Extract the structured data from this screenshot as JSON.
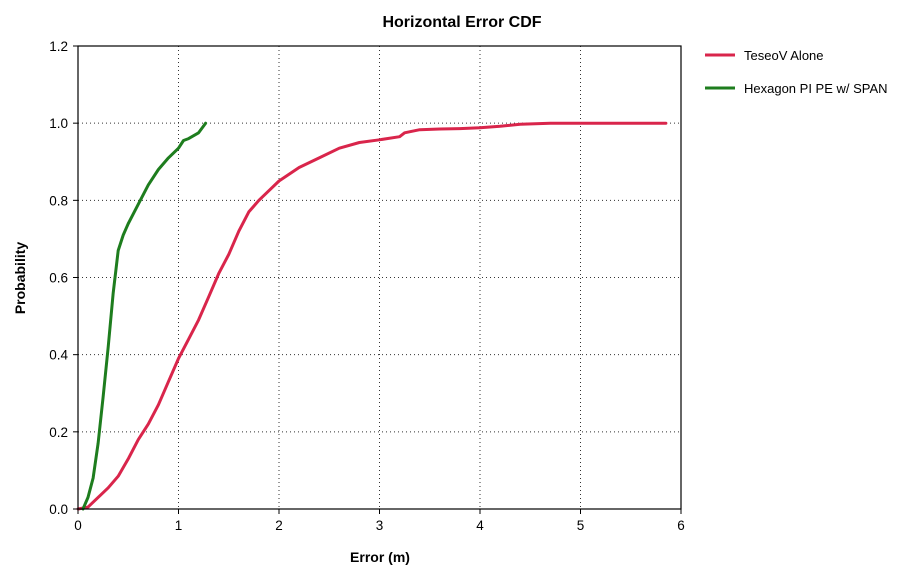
{
  "chart_data": {
    "type": "line",
    "title": "Horizontal Error CDF",
    "xlabel": "Error (m)",
    "ylabel": "Probability",
    "xlim": [
      0,
      6
    ],
    "ylim": [
      0,
      1.2
    ],
    "x_ticks": [
      "0",
      "1",
      "2",
      "3",
      "4",
      "5",
      "6"
    ],
    "y_ticks": [
      "0.0",
      "0.2",
      "0.4",
      "0.6",
      "0.8",
      "1.0",
      "1.2"
    ],
    "grid": true,
    "legend_position": "right",
    "series": [
      {
        "name": "TeseoV Alone",
        "color": "#d9254b",
        "points": [
          [
            0.0,
            0.0
          ],
          [
            0.1,
            0.005
          ],
          [
            0.2,
            0.03
          ],
          [
            0.3,
            0.055
          ],
          [
            0.4,
            0.085
          ],
          [
            0.5,
            0.13
          ],
          [
            0.6,
            0.18
          ],
          [
            0.7,
            0.22
          ],
          [
            0.8,
            0.27
          ],
          [
            0.9,
            0.33
          ],
          [
            1.0,
            0.39
          ],
          [
            1.1,
            0.44
          ],
          [
            1.2,
            0.49
          ],
          [
            1.3,
            0.55
          ],
          [
            1.4,
            0.61
          ],
          [
            1.5,
            0.66
          ],
          [
            1.6,
            0.72
          ],
          [
            1.7,
            0.77
          ],
          [
            1.8,
            0.8
          ],
          [
            1.9,
            0.825
          ],
          [
            2.0,
            0.85
          ],
          [
            2.2,
            0.885
          ],
          [
            2.4,
            0.91
          ],
          [
            2.6,
            0.935
          ],
          [
            2.8,
            0.95
          ],
          [
            3.0,
            0.957
          ],
          [
            3.2,
            0.965
          ],
          [
            3.25,
            0.975
          ],
          [
            3.4,
            0.983
          ],
          [
            3.6,
            0.985
          ],
          [
            3.8,
            0.986
          ],
          [
            4.0,
            0.988
          ],
          [
            4.2,
            0.992
          ],
          [
            4.4,
            0.997
          ],
          [
            4.7,
            1.0
          ],
          [
            5.0,
            1.0
          ],
          [
            5.4,
            1.0
          ],
          [
            5.85,
            1.0
          ]
        ]
      },
      {
        "name": "Hexagon PI PE w/ SPAN",
        "color": "#1e7d1e",
        "points": [
          [
            0.05,
            0.0
          ],
          [
            0.1,
            0.03
          ],
          [
            0.15,
            0.08
          ],
          [
            0.2,
            0.17
          ],
          [
            0.25,
            0.29
          ],
          [
            0.3,
            0.42
          ],
          [
            0.35,
            0.56
          ],
          [
            0.4,
            0.67
          ],
          [
            0.45,
            0.71
          ],
          [
            0.5,
            0.74
          ],
          [
            0.6,
            0.79
          ],
          [
            0.7,
            0.84
          ],
          [
            0.8,
            0.88
          ],
          [
            0.9,
            0.91
          ],
          [
            1.0,
            0.935
          ],
          [
            1.05,
            0.955
          ],
          [
            1.1,
            0.96
          ],
          [
            1.2,
            0.975
          ],
          [
            1.27,
            1.0
          ]
        ]
      }
    ]
  }
}
